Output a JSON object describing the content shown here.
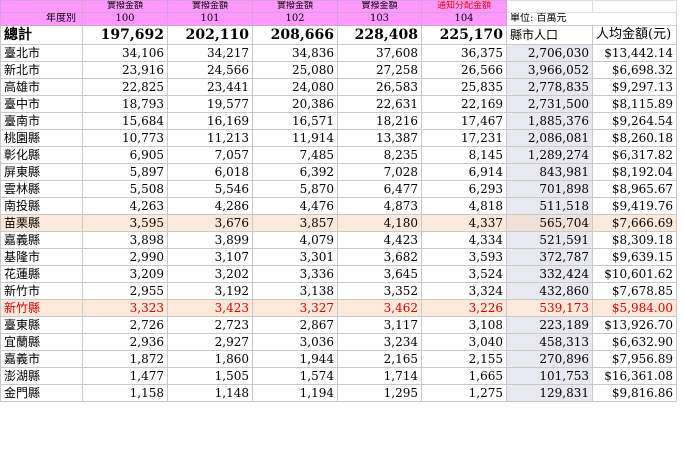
{
  "header_row1": [
    "",
    "實撥金額",
    "實撥金額",
    "實撥金額",
    "實撥金額",
    "通知分配金額",
    "",
    ""
  ],
  "year_label": "年度別",
  "years": [
    "100",
    "101",
    "102",
    "103",
    "104"
  ],
  "unit": "單位: 百萬元",
  "total": {
    "name": "總計",
    "values": [
      "197,692",
      "202,110",
      "208,666",
      "228,408",
      "225,170"
    ],
    "pop_header": "縣市人口",
    "avg_header": "人均金額(元)"
  },
  "rows": [
    {
      "name": "臺北市",
      "values": [
        "34,106",
        "34,217",
        "34,836",
        "37,608",
        "36,375"
      ],
      "pop": "2,706,030",
      "avg": "$13,442.14"
    },
    {
      "name": "新北市",
      "values": [
        "23,916",
        "24,566",
        "25,080",
        "27,258",
        "26,566"
      ],
      "pop": "3,966,052",
      "avg": "$6,698.32"
    },
    {
      "name": "高雄市",
      "values": [
        "22,825",
        "23,441",
        "24,080",
        "26,583",
        "25,835"
      ],
      "pop": "2,778,835",
      "avg": "$9,297.13"
    },
    {
      "name": "臺中市",
      "values": [
        "18,793",
        "19,577",
        "20,386",
        "22,631",
        "22,169"
      ],
      "pop": "2,731,500",
      "avg": "$8,115.89"
    },
    {
      "name": "臺南市",
      "values": [
        "15,684",
        "16,169",
        "16,571",
        "18,216",
        "17,467"
      ],
      "pop": "1,885,376",
      "avg": "$9,264.54"
    },
    {
      "name": "桃園縣",
      "values": [
        "10,773",
        "11,213",
        "11,914",
        "13,387",
        "17,231"
      ],
      "pop": "2,086,081",
      "avg": "$8,260.18"
    },
    {
      "name": "彰化縣",
      "values": [
        "6,905",
        "7,057",
        "7,485",
        "8,235",
        "8,145"
      ],
      "pop": "1,289,274",
      "avg": "$6,317.82"
    },
    {
      "name": "屏東縣",
      "values": [
        "5,897",
        "6,018",
        "6,392",
        "7,028",
        "6,914"
      ],
      "pop": "843,981",
      "avg": "$8,192.04"
    },
    {
      "name": "雲林縣",
      "values": [
        "5,508",
        "5,546",
        "5,870",
        "6,477",
        "6,293"
      ],
      "pop": "701,898",
      "avg": "$8,965.67"
    },
    {
      "name": "南投縣",
      "values": [
        "4,263",
        "4,286",
        "4,476",
        "4,873",
        "4,818"
      ],
      "pop": "511,518",
      "avg": "$9,419.76"
    },
    {
      "name": "苗栗縣",
      "values": [
        "3,595",
        "3,676",
        "3,857",
        "4,180",
        "4,337"
      ],
      "pop": "565,704",
      "avg": "$7,666.69",
      "style": "hl"
    },
    {
      "name": "嘉義縣",
      "values": [
        "3,898",
        "3,899",
        "4,079",
        "4,423",
        "4,334"
      ],
      "pop": "521,591",
      "avg": "$8,309.18"
    },
    {
      "name": "基隆市",
      "values": [
        "2,990",
        "3,107",
        "3,301",
        "3,682",
        "3,593"
      ],
      "pop": "372,787",
      "avg": "$9,639.15"
    },
    {
      "name": "花蓮縣",
      "values": [
        "3,209",
        "3,202",
        "3,336",
        "3,645",
        "3,524"
      ],
      "pop": "332,424",
      "avg": "$10,601.62"
    },
    {
      "name": "新竹市",
      "values": [
        "2,955",
        "3,192",
        "3,138",
        "3,352",
        "3,324"
      ],
      "pop": "432,860",
      "avg": "$7,678.85"
    },
    {
      "name": "新竹縣",
      "values": [
        "3,323",
        "3,423",
        "3,327",
        "3,462",
        "3,226"
      ],
      "pop": "539,173",
      "avg": "$5,984.00",
      "style": "red"
    },
    {
      "name": "臺東縣",
      "values": [
        "2,726",
        "2,723",
        "2,867",
        "3,117",
        "3,108"
      ],
      "pop": "223,189",
      "avg": "$13,926.70"
    },
    {
      "name": "宜蘭縣",
      "values": [
        "2,936",
        "2,927",
        "3,036",
        "3,234",
        "3,040"
      ],
      "pop": "458,313",
      "avg": "$6,632.90"
    },
    {
      "name": "嘉義市",
      "values": [
        "1,872",
        "1,860",
        "1,944",
        "2,165",
        "2,155"
      ],
      "pop": "270,896",
      "avg": "$7,956.89"
    },
    {
      "name": "澎湖縣",
      "values": [
        "1,477",
        "1,505",
        "1,574",
        "1,714",
        "1,665"
      ],
      "pop": "101,753",
      "avg": "$16,361.08"
    },
    {
      "name": "金門縣",
      "values": [
        "1,158",
        "1,148",
        "1,194",
        "1,295",
        "1,275"
      ],
      "pop": "129,831",
      "avg": "$9,816.86"
    }
  ]
}
